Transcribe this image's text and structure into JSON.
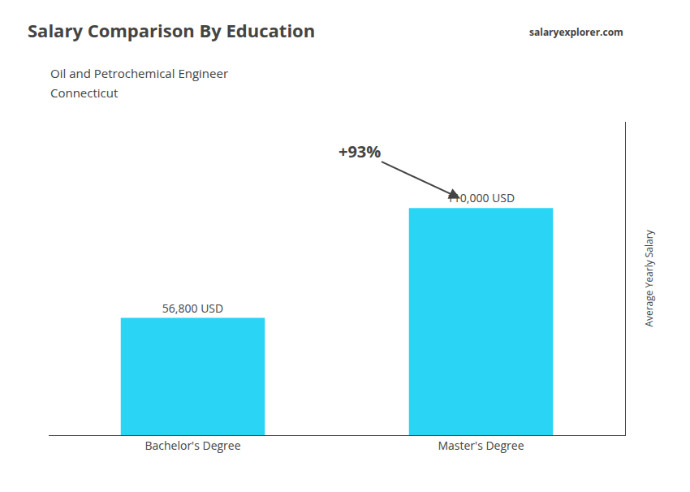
{
  "chart_data": {
    "type": "bar",
    "title": "Salary Comparison By Education",
    "subtitle": [
      "Oil and Petrochemical Engineer",
      "Connecticut"
    ],
    "ylabel": "Average Yearly Salary",
    "categories": [
      "Bachelor's Degree",
      "Master's Degree"
    ],
    "values": [
      56800,
      110000
    ],
    "value_labels": [
      "56,800 USD",
      "110,000 USD"
    ],
    "data_labels": true,
    "annotations": [
      "+93%",
      "salaryexplorer.com"
    ],
    "color": "#29d4f5",
    "ylim": [
      0,
      151800
    ],
    "yticks": [],
    "tick_labels": "x",
    "grid": false
  }
}
